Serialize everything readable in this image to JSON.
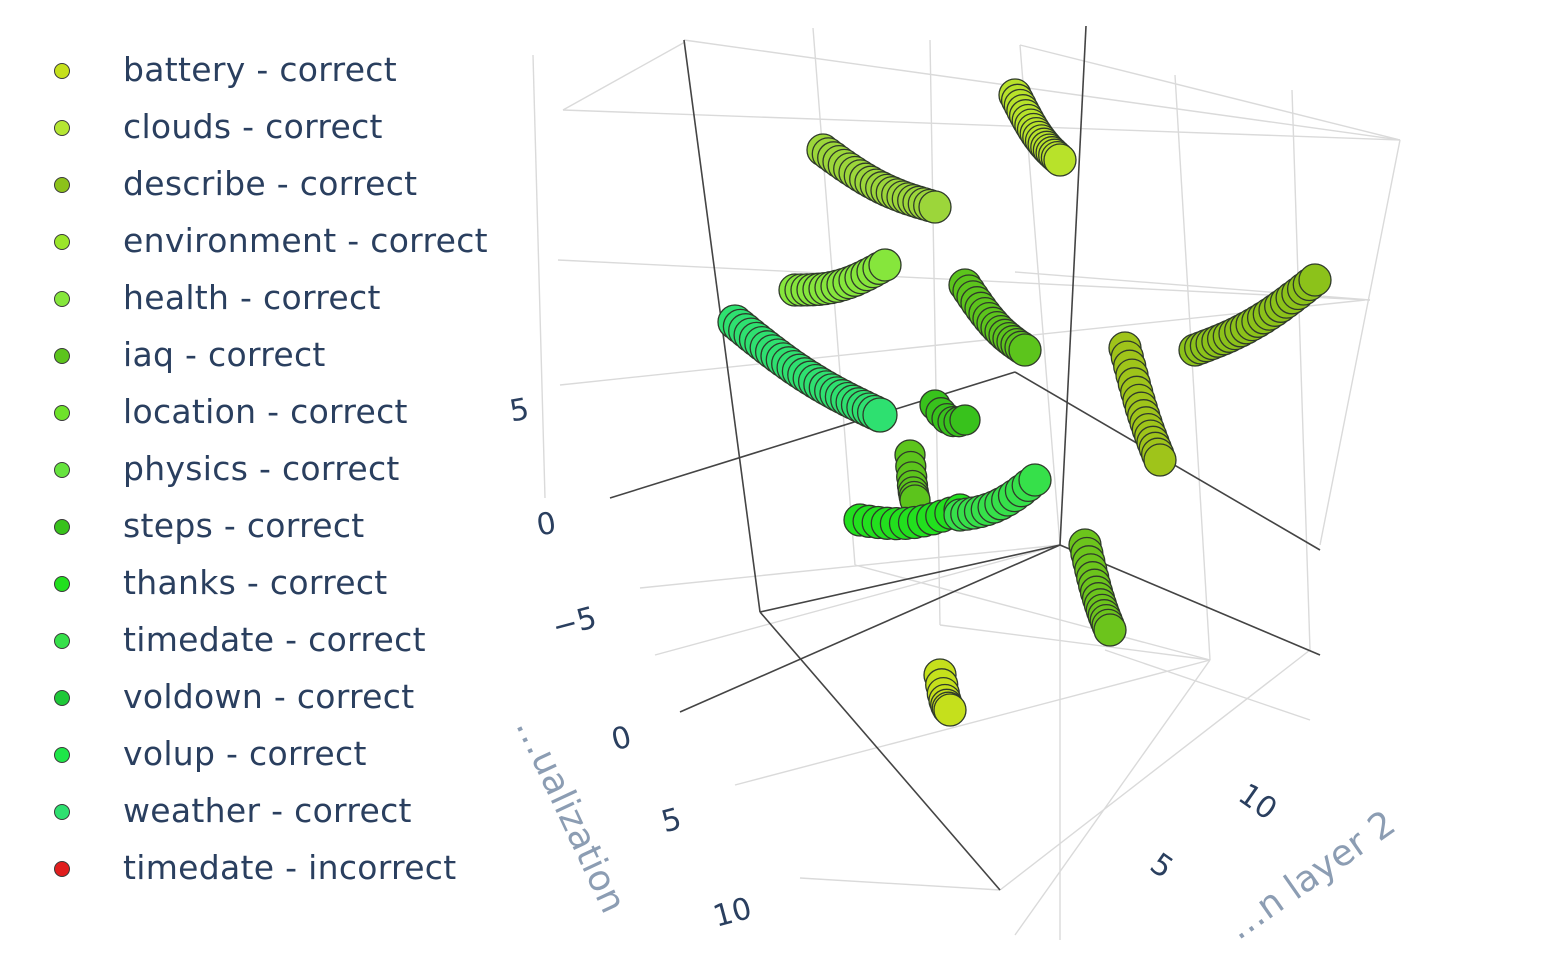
{
  "chart_data": {
    "type": "scatter",
    "dimensions": 3,
    "legend": [
      {
        "name": "battery - correct",
        "color": "#c5e01c"
      },
      {
        "name": "clouds - correct",
        "color": "#b5e633"
      },
      {
        "name": "describe - correct",
        "color": "#8cc21a"
      },
      {
        "name": "environment - correct",
        "color": "#9be62a"
      },
      {
        "name": "health - correct",
        "color": "#86e63c"
      },
      {
        "name": "iaq - correct",
        "color": "#5cc41c"
      },
      {
        "name": "location - correct",
        "color": "#6ee22a"
      },
      {
        "name": "physics - correct",
        "color": "#66e33e"
      },
      {
        "name": "steps - correct",
        "color": "#38c21c"
      },
      {
        "name": "thanks - correct",
        "color": "#22e01e"
      },
      {
        "name": "timedate - correct",
        "color": "#36e04a"
      },
      {
        "name": "voldown - correct",
        "color": "#1ec838"
      },
      {
        "name": "volup - correct",
        "color": "#1ee648"
      },
      {
        "name": "weather - correct",
        "color": "#2ee070"
      },
      {
        "name": "timedate - incorrect",
        "color": "#e01e1e"
      }
    ],
    "axes": {
      "x": {
        "title": "…ualization",
        "ticks": [
          "0",
          "5",
          "10"
        ]
      },
      "y": {
        "title": "…n layer 2",
        "ticks": [
          "5",
          "10"
        ]
      },
      "z": {
        "ticks": [
          "5",
          "0",
          "−5"
        ]
      }
    },
    "grid": true,
    "legend_placement": "left"
  }
}
